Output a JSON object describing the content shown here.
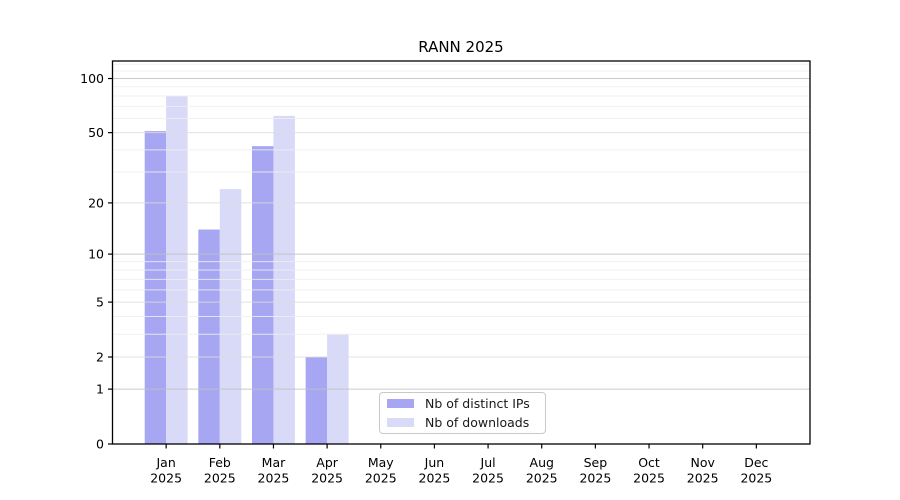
{
  "title": "RANN 2025",
  "legend": {
    "items": [
      {
        "label": "Nb of distinct IPs",
        "color": "#a6a6f2"
      },
      {
        "label": "Nb of downloads",
        "color": "#d9d9f8"
      }
    ]
  },
  "chart_data": {
    "type": "bar",
    "title": "RANN 2025",
    "categories": [
      "Jan",
      "Feb",
      "Mar",
      "Apr",
      "May",
      "Jun",
      "Jul",
      "Aug",
      "Sep",
      "Oct",
      "Nov",
      "Dec"
    ],
    "x_year_line": "2025",
    "series": [
      {
        "name": "Nb of distinct IPs",
        "color": "#a6a6f2",
        "values": [
          51,
          14,
          42,
          2,
          0,
          0,
          0,
          0,
          0,
          0,
          0,
          0
        ]
      },
      {
        "name": "Nb of downloads",
        "color": "#d9d9f8",
        "values": [
          80,
          24,
          62,
          3,
          0,
          0,
          0,
          0,
          0,
          0,
          0,
          0
        ]
      }
    ],
    "xlabel": "",
    "ylabel": "",
    "y_scale": "log1p",
    "ylim": [
      0,
      125
    ],
    "y_tick_labels": [
      0,
      1,
      2,
      5,
      10,
      20,
      50,
      100
    ],
    "gridlines": {
      "power_of_ten": [
        1,
        10,
        100
      ],
      "labeled_major": [
        2,
        5,
        20,
        50
      ],
      "minor": [
        3,
        4,
        6,
        7,
        8,
        9,
        30,
        40,
        60,
        70,
        80,
        90,
        110,
        120
      ]
    },
    "grid": "horizontal, drawn above bars",
    "legend_position": "inside axes, lower center"
  },
  "colors": {
    "spine": "#000000",
    "grid_power": "#c0c0c0",
    "grid_major": "#dcdcdc",
    "grid_minor": "#efefef",
    "tick_label": "#000000"
  }
}
